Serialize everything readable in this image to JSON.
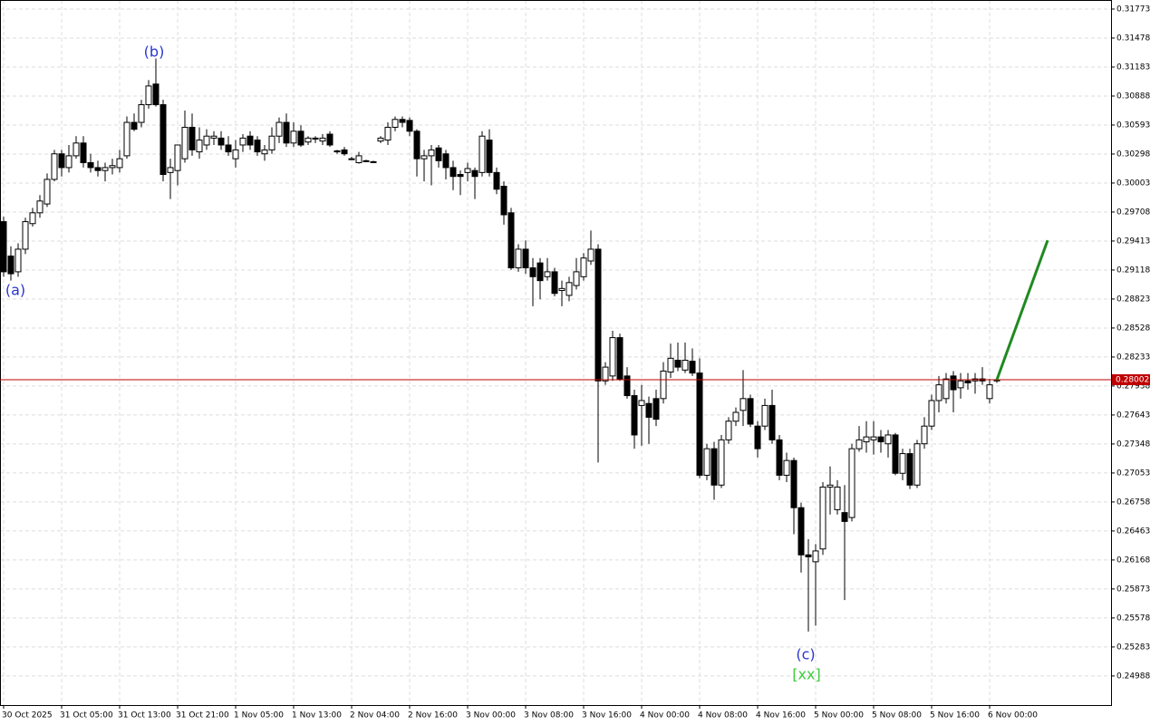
{
  "chart_data": {
    "type": "candlestick",
    "categories": [
      "30 Oct 2025",
      null,
      null,
      null,
      null,
      null,
      null,
      null,
      "31 Oct 05:00",
      null,
      null,
      null,
      null,
      null,
      null,
      null,
      "31 Oct 13:00",
      null,
      null,
      null,
      null,
      null,
      null,
      null,
      "31 Oct 21:00",
      null,
      null,
      null,
      null,
      null,
      null,
      null,
      "1 Nov 05:00",
      null,
      null,
      null,
      null,
      null,
      null,
      null,
      "1 Nov 13:00",
      null,
      null,
      null,
      null,
      null,
      null,
      null,
      "2 Nov 04:00",
      null,
      null,
      null,
      null,
      null,
      null,
      null,
      "2 Nov 16:00",
      null,
      null,
      null,
      null,
      null,
      null,
      null,
      "3 Nov 00:00",
      null,
      null,
      null,
      null,
      null,
      null,
      null,
      "3 Nov 08:00",
      null,
      null,
      null,
      null,
      null,
      null,
      null,
      "3 Nov 16:00",
      null,
      null,
      null,
      null,
      null,
      null,
      null,
      "4 Nov 00:00",
      null,
      null,
      null,
      null,
      null,
      null,
      null,
      "4 Nov 08:00",
      null,
      null,
      null,
      null,
      null,
      null,
      null,
      "4 Nov 16:00",
      null,
      null,
      null,
      null,
      null,
      null,
      null,
      "5 Nov 00:00",
      null,
      null,
      null,
      null,
      null,
      null,
      null,
      "5 Nov 08:00",
      null,
      null,
      null,
      null,
      null,
      null,
      null,
      "5 Nov 16:00",
      null,
      null,
      null,
      null,
      null,
      null,
      null,
      "6 Nov 00:00",
      null
    ],
    "open": [
      0.2961,
      0.2926,
      0.291,
      0.2933,
      0.2959,
      0.297,
      0.2979,
      0.3004,
      0.303,
      0.3016,
      0.3028,
      0.3041,
      0.3021,
      0.3016,
      0.3013,
      0.3016,
      0.3016,
      0.3028,
      0.3062,
      0.3062,
      0.308,
      0.3101,
      0.308,
      0.3011,
      0.3013,
      0.3025,
      0.3057,
      0.3032,
      0.3039,
      0.3046,
      0.3046,
      0.3039,
      0.3025,
      0.3039,
      0.3048,
      0.3044,
      0.303,
      0.3034,
      0.3048,
      0.3062,
      0.3041,
      0.3053,
      0.3042,
      0.3045,
      0.3043,
      0.305,
      0.3033,
      0.3034,
      0.3025,
      0.3021,
      0.3023,
      0.3022,
      0.3043,
      0.3044,
      0.3057,
      0.3065,
      0.3064,
      0.3053,
      0.3025,
      0.3028,
      0.3036,
      0.303,
      0.3016,
      0.3009,
      0.3011,
      0.3013,
      0.3011,
      0.3044,
      0.3011,
      0.2997,
      0.297,
      0.2914,
      0.2933,
      0.2914,
      0.2919,
      0.2905,
      0.291,
      0.2891,
      0.2886,
      0.2896,
      0.2905,
      0.2921,
      0.2933,
      0.2799,
      0.2804,
      0.2843,
      0.2804,
      0.2784,
      0.2774,
      0.2776,
      0.2781,
      0.2781,
      0.2808,
      0.282,
      0.281,
      0.2819,
      0.2807,
      0.2703,
      0.273,
      0.2693,
      0.2739,
      0.2758,
      0.2769,
      0.2781,
      0.2753,
      0.2753,
      0.2774,
      0.2739,
      0.2703,
      0.2718,
      0.267,
      0.2622,
      0.2615,
      0.2628,
      0.2691,
      0.2668,
      0.2665,
      0.266,
      0.273,
      0.2737,
      0.2739,
      0.2742,
      0.2735,
      0.2744,
      0.2705,
      0.2725,
      0.2693,
      0.2735,
      0.2753,
      0.2779,
      0.2781,
      0.2804,
      0.2792,
      0.2799,
      0.2799,
      0.2801,
      0.2781,
      0.2799
    ],
    "high": [
      0.2966,
      0.2936,
      0.2939,
      0.2965,
      0.2975,
      0.2988,
      0.301,
      0.3034,
      0.3034,
      0.3039,
      0.3048,
      0.3048,
      0.303,
      0.3023,
      0.3021,
      0.3025,
      0.3034,
      0.3068,
      0.3071,
      0.3085,
      0.3105,
      0.3127,
      0.3085,
      0.3025,
      0.3039,
      0.3074,
      0.3071,
      0.3057,
      0.3055,
      0.3053,
      0.3053,
      0.3048,
      0.3044,
      0.305,
      0.3053,
      0.3048,
      0.3039,
      0.3057,
      0.3067,
      0.3071,
      0.3062,
      0.3059,
      0.3048,
      0.3048,
      0.305,
      0.3053,
      0.3034,
      0.3037,
      0.3027,
      0.3032,
      0.3024,
      0.3023,
      0.3048,
      0.3062,
      0.3068,
      0.3068,
      0.3067,
      0.3055,
      0.3034,
      0.3039,
      0.3039,
      0.3034,
      0.3023,
      0.3013,
      0.3021,
      0.3016,
      0.3053,
      0.3055,
      0.3016,
      0.3002,
      0.2975,
      0.2938,
      0.2942,
      0.2924,
      0.2924,
      0.2924,
      0.2914,
      0.2901,
      0.2905,
      0.2924,
      0.2929,
      0.2952,
      0.2938,
      0.2818,
      0.285,
      0.2847,
      0.2813,
      0.279,
      0.2795,
      0.2783,
      0.279,
      0.2818,
      0.2837,
      0.2838,
      0.2838,
      0.2832,
      0.2822,
      0.2735,
      0.2737,
      0.2744,
      0.2762,
      0.2772,
      0.281,
      0.2785,
      0.2758,
      0.2781,
      0.279,
      0.2744,
      0.2726,
      0.2721,
      0.2675,
      0.2638,
      0.2633,
      0.2696,
      0.2712,
      0.2698,
      0.2693,
      0.2735,
      0.2753,
      0.2758,
      0.2758,
      0.2749,
      0.2749,
      0.2746,
      0.273,
      0.273,
      0.2739,
      0.2762,
      0.2785,
      0.2804,
      0.2807,
      0.2809,
      0.2807,
      0.2807,
      0.2807,
      0.2813,
      0.2801,
      0.2801
    ],
    "low": [
      0.2905,
      0.2901,
      0.2905,
      0.2928,
      0.2956,
      0.2965,
      0.2976,
      0.3002,
      0.3007,
      0.3011,
      0.3025,
      0.3016,
      0.3011,
      0.3007,
      0.3002,
      0.3009,
      0.3011,
      0.3025,
      0.3053,
      0.3057,
      0.3076,
      0.3078,
      0.3002,
      0.2984,
      0.2998,
      0.3021,
      0.3028,
      0.3025,
      0.3034,
      0.3039,
      0.3034,
      0.3028,
      0.3016,
      0.3032,
      0.3034,
      0.3028,
      0.3023,
      0.303,
      0.3041,
      0.3037,
      0.3037,
      0.3037,
      0.3039,
      0.3041,
      0.3039,
      0.3037,
      0.303,
      0.3028,
      0.3024,
      0.302,
      0.3022,
      0.3021,
      0.3041,
      0.3039,
      0.3053,
      0.3057,
      0.3048,
      0.3007,
      0.3002,
      0.2998,
      0.3016,
      0.3004,
      0.2993,
      0.2988,
      0.3002,
      0.2984,
      0.3007,
      0.3007,
      0.2989,
      0.2958,
      0.2912,
      0.291,
      0.2908,
      0.2875,
      0.2882,
      0.2901,
      0.2885,
      0.2875,
      0.288,
      0.2892,
      0.2901,
      0.2917,
      0.2716,
      0.2795,
      0.2799,
      0.2799,
      0.2781,
      0.273,
      0.2733,
      0.2735,
      0.2753,
      0.2776,
      0.2802,
      0.2809,
      0.2807,
      0.2804,
      0.27,
      0.2698,
      0.2678,
      0.269,
      0.2735,
      0.2753,
      0.2753,
      0.2752,
      0.2721,
      0.2749,
      0.2735,
      0.2698,
      0.2696,
      0.2643,
      0.2604,
      0.2544,
      0.255,
      0.2622,
      0.2663,
      0.2663,
      0.2576,
      0.2656,
      0.2727,
      0.2726,
      0.2724,
      0.2726,
      0.2721,
      0.2703,
      0.2698,
      0.2689,
      0.269,
      0.273,
      0.2749,
      0.2767,
      0.2776,
      0.2767,
      0.2781,
      0.279,
      0.2786,
      0.2795,
      0.2776,
      0.2797
    ],
    "close": [
      0.291,
      0.2908,
      0.2933,
      0.2961,
      0.297,
      0.2982,
      0.3004,
      0.303,
      0.3016,
      0.3028,
      0.3041,
      0.3021,
      0.3016,
      0.3013,
      0.3016,
      0.3018,
      0.3025,
      0.3062,
      0.3055,
      0.308,
      0.3099,
      0.308,
      0.3009,
      0.3016,
      0.3039,
      0.3057,
      0.3034,
      0.3044,
      0.3048,
      0.3048,
      0.3039,
      0.3032,
      0.3034,
      0.3046,
      0.3039,
      0.3032,
      0.3034,
      0.3048,
      0.3062,
      0.3041,
      0.3053,
      0.3039,
      0.3046,
      0.3046,
      0.3046,
      0.3039,
      0.3032,
      0.303,
      0.3025,
      0.3028,
      0.3022,
      0.3022,
      0.3046,
      0.3057,
      0.3065,
      0.3062,
      0.3053,
      0.3025,
      0.3028,
      0.3034,
      0.3023,
      0.3016,
      0.3007,
      0.3007,
      0.3015,
      0.3007,
      0.3048,
      0.3011,
      0.2994,
      0.2968,
      0.2914,
      0.2933,
      0.2914,
      0.2905,
      0.2901,
      0.291,
      0.2888,
      0.2893,
      0.2899,
      0.291,
      0.2924,
      0.2933,
      0.2799,
      0.2813,
      0.2843,
      0.2801,
      0.2784,
      0.2744,
      0.2779,
      0.2762,
      0.276,
      0.2809,
      0.2822,
      0.2813,
      0.282,
      0.2807,
      0.2703,
      0.273,
      0.2693,
      0.2739,
      0.2758,
      0.2767,
      0.2781,
      0.2755,
      0.273,
      0.2774,
      0.2739,
      0.2703,
      0.2718,
      0.267,
      0.2622,
      0.262,
      0.2626,
      0.2691,
      0.2693,
      0.2691,
      0.2656,
      0.273,
      0.2739,
      0.2742,
      0.2742,
      0.2737,
      0.2744,
      0.2705,
      0.2725,
      0.2693,
      0.2735,
      0.2753,
      0.2779,
      0.2795,
      0.2801,
      0.279,
      0.2799,
      0.2797,
      0.2801,
      0.2799,
      0.2795,
      0.28
    ],
    "ylim": [
      0.24692,
      0.31865
    ],
    "yticks": [
      0.31773,
      0.31478,
      0.31183,
      0.30888,
      0.30593,
      0.30298,
      0.30003,
      0.29708,
      0.29413,
      0.29118,
      0.28823,
      0.28528,
      0.28233,
      0.27938,
      0.27643,
      0.27348,
      0.27053,
      0.26758,
      0.26463,
      0.26168,
      0.25873,
      0.25578,
      0.25283,
      0.24988
    ],
    "grid": true,
    "current_price": 0.28002,
    "current_price_color": "#c00000",
    "projection": {
      "x": [
        137,
        144
      ],
      "values": [
        0.28002,
        0.2942
      ],
      "color": "#1f8a1f"
    },
    "annotations": [
      {
        "text": "(a)",
        "color": "#2a35d0"
      },
      {
        "text": "(b)",
        "color": "#2a35d0"
      },
      {
        "text": "(c)",
        "color": "#2a35d0"
      },
      {
        "text": "[xx]",
        "color": "#3ccc3c"
      }
    ]
  }
}
